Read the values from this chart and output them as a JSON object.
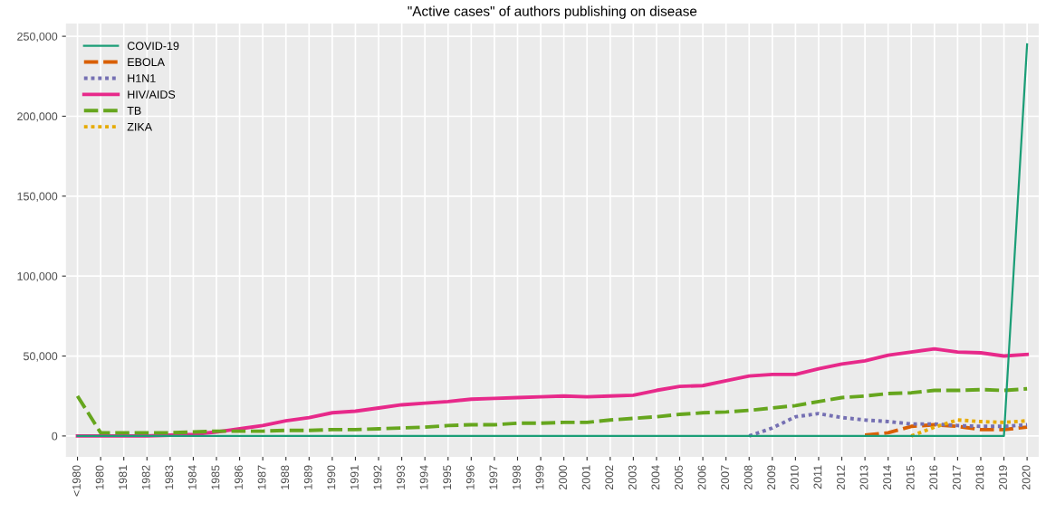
{
  "chart_data": {
    "type": "line",
    "title": "\"Active cases\" of authors publishing on disease",
    "categories": [
      "<1980",
      "1980",
      "1981",
      "1982",
      "1983",
      "1984",
      "1985",
      "1986",
      "1987",
      "1988",
      "1989",
      "1990",
      "1991",
      "1992",
      "1993",
      "1994",
      "1995",
      "1996",
      "1997",
      "1998",
      "1999",
      "2000",
      "2001",
      "2002",
      "2003",
      "2004",
      "2005",
      "2006",
      "2007",
      "2008",
      "2009",
      "2010",
      "2011",
      "2012",
      "2013",
      "2014",
      "2015",
      "2016",
      "2017",
      "2018",
      "2019",
      "2020"
    ],
    "series": [
      {
        "name": "COVID-19",
        "color": "#1b9e77",
        "line_style": "solid",
        "values": [
          0,
          0,
          0,
          0,
          0,
          0,
          0,
          0,
          0,
          0,
          0,
          0,
          0,
          0,
          0,
          0,
          0,
          0,
          0,
          0,
          0,
          0,
          0,
          0,
          0,
          0,
          0,
          0,
          0,
          0,
          0,
          0,
          0,
          0,
          0,
          0,
          0,
          0,
          0,
          0,
          0,
          245000
        ]
      },
      {
        "name": "EBOLA",
        "color": "#d95f02",
        "line_style": "dashed",
        "values": [
          null,
          null,
          null,
          null,
          null,
          null,
          null,
          null,
          null,
          null,
          null,
          null,
          null,
          null,
          null,
          null,
          null,
          null,
          null,
          null,
          null,
          null,
          null,
          null,
          null,
          null,
          null,
          null,
          null,
          null,
          null,
          null,
          null,
          null,
          500,
          2000,
          6000,
          7000,
          6000,
          4000,
          4000,
          5500
        ]
      },
      {
        "name": "H1N1",
        "color": "#7570b3",
        "line_style": "dotted",
        "values": [
          null,
          null,
          null,
          null,
          null,
          null,
          null,
          null,
          null,
          null,
          null,
          null,
          null,
          null,
          null,
          null,
          null,
          null,
          null,
          null,
          null,
          null,
          null,
          null,
          null,
          null,
          null,
          null,
          null,
          0,
          5000,
          12000,
          14000,
          11500,
          10000,
          9000,
          7500,
          7500,
          6500,
          6000,
          6000,
          7000
        ]
      },
      {
        "name": "HIV/AIDS",
        "color": "#e7298a",
        "line_style": "solid",
        "values": [
          0,
          0,
          0,
          0,
          500,
          1000,
          2500,
          4500,
          6500,
          9500,
          11500,
          14500,
          15500,
          17500,
          19500,
          20500,
          21500,
          23000,
          23500,
          24000,
          24500,
          25000,
          24500,
          25000,
          25500,
          28500,
          31000,
          31500,
          34500,
          37500,
          38500,
          38500,
          42000,
          45000,
          47000,
          50500,
          52500,
          54500,
          52500,
          52000,
          50000,
          51000
        ]
      },
      {
        "name": "TB",
        "color": "#66a61e",
        "line_style": "dashed",
        "values": [
          25000,
          2000,
          2000,
          2000,
          2000,
          2500,
          3000,
          3000,
          3000,
          3500,
          3500,
          4000,
          4000,
          4500,
          5000,
          5500,
          6500,
          7000,
          7000,
          8000,
          8000,
          8500,
          8500,
          10000,
          11000,
          12000,
          13500,
          14500,
          15000,
          16000,
          17500,
          19000,
          21500,
          24000,
          25000,
          26500,
          27000,
          28500,
          28500,
          29000,
          28500,
          29500
        ]
      },
      {
        "name": "ZIKA",
        "color": "#e6ab02",
        "line_style": "dotted",
        "values": [
          null,
          null,
          null,
          null,
          null,
          null,
          null,
          null,
          null,
          null,
          null,
          null,
          null,
          null,
          null,
          null,
          null,
          null,
          null,
          null,
          null,
          null,
          null,
          null,
          null,
          null,
          null,
          null,
          null,
          null,
          null,
          null,
          null,
          null,
          null,
          null,
          0,
          5500,
          10000,
          9000,
          8500,
          9500
        ]
      }
    ],
    "ylim": [
      -13000,
      258000
    ],
    "yticks": [
      {
        "value": 0,
        "label": "0"
      },
      {
        "value": 50000,
        "label": "50,000"
      },
      {
        "value": 100000,
        "label": "100,000"
      },
      {
        "value": 150000,
        "label": "150,000"
      },
      {
        "value": 200000,
        "label": "200,000"
      },
      {
        "value": 250000,
        "label": "250,000"
      }
    ],
    "grid": true,
    "legend": "top left"
  }
}
